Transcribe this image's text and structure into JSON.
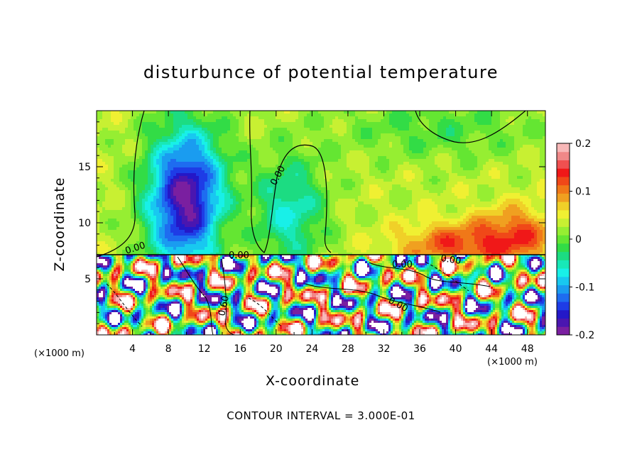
{
  "chart_data": {
    "type": "heatmap",
    "title": "disturbunce of potential temperature",
    "xlabel": "X-coordinate",
    "ylabel": "Z-coordinate",
    "x_unit_label": "(×1000 m)",
    "xlim": [
      0,
      50
    ],
    "ylim": [
      0,
      20
    ],
    "x_ticks": [
      4,
      8,
      12,
      16,
      20,
      24,
      28,
      32,
      36,
      40,
      44,
      48
    ],
    "y_ticks": [
      5,
      10,
      15
    ],
    "colorbar": {
      "range": [
        -0.2,
        0.2
      ],
      "tick_labels": [
        "0.2",
        "0.1",
        "0",
        "-0.1",
        "-0.2"
      ],
      "tick_values": [
        0.2,
        0.1,
        0,
        -0.1,
        -0.2
      ],
      "colors": [
        "#7a1fa0",
        "#4a16b0",
        "#2418c8",
        "#1e3ce6",
        "#1e6cf0",
        "#1a9cf0",
        "#18c8f0",
        "#18f0e8",
        "#18e8b8",
        "#1cdc82",
        "#32dc46",
        "#64e632",
        "#96ee32",
        "#c8f032",
        "#f0f032",
        "#f0d028",
        "#f0a020",
        "#f07818",
        "#f04818",
        "#f01818",
        "#f05050",
        "#f08888",
        "#f8b8b8"
      ]
    },
    "contour_interval_label": "CONTOUR INTERVAL = 3.000E-01",
    "contour_labels": [
      "0.00",
      "0.00",
      "0.00",
      "0.00",
      "0.00",
      "0.00",
      "0.60"
    ],
    "upper_field": {
      "background": 0.03,
      "cool_anomalies": [
        {
          "x": 10.0,
          "z": 12.0,
          "amp": -0.22,
          "sx": 3.0,
          "sz": 4.5
        },
        {
          "x": 21.5,
          "z": 11.0,
          "amp": -0.09,
          "sx": 2.8,
          "sz": 3.5
        },
        {
          "x": 38.0,
          "z": 18.5,
          "amp": -0.04,
          "sx": 8.0,
          "sz": 2.0
        }
      ],
      "warm_anomalies": [
        {
          "x": 40.0,
          "z": 8.0,
          "amp": 0.09,
          "sx": 4.5,
          "sz": 1.5
        },
        {
          "x": 47.0,
          "z": 9.0,
          "amp": 0.08,
          "sx": 3.0,
          "sz": 1.8
        },
        {
          "x": 14.0,
          "z": 9.0,
          "amp": 0.02,
          "sx": 2.0,
          "sz": 2.0
        }
      ]
    }
  }
}
